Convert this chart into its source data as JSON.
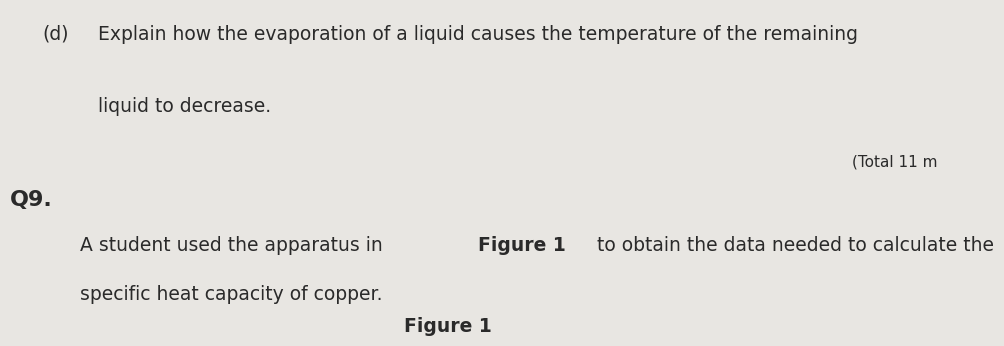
{
  "background_color": "#e8e6e2",
  "label_d": "(d)",
  "line1": "Explain how the evaporation of a liquid causes the temperature of the remaining",
  "line2": "liquid to decrease.",
  "total_text": "(Total 11 m",
  "q29_label": "Q9.",
  "line3_pre": "A student used the apparatus in ",
  "line3_bold": "Figure 1",
  "line3_post": " to obtain the data needed to calculate the",
  "line4": "specific heat capacity of copper.",
  "figure1_label": "Figure 1",
  "font_size_body": 13.5,
  "font_size_q": 16,
  "font_size_total": 11,
  "text_color": "#2a2a2a"
}
